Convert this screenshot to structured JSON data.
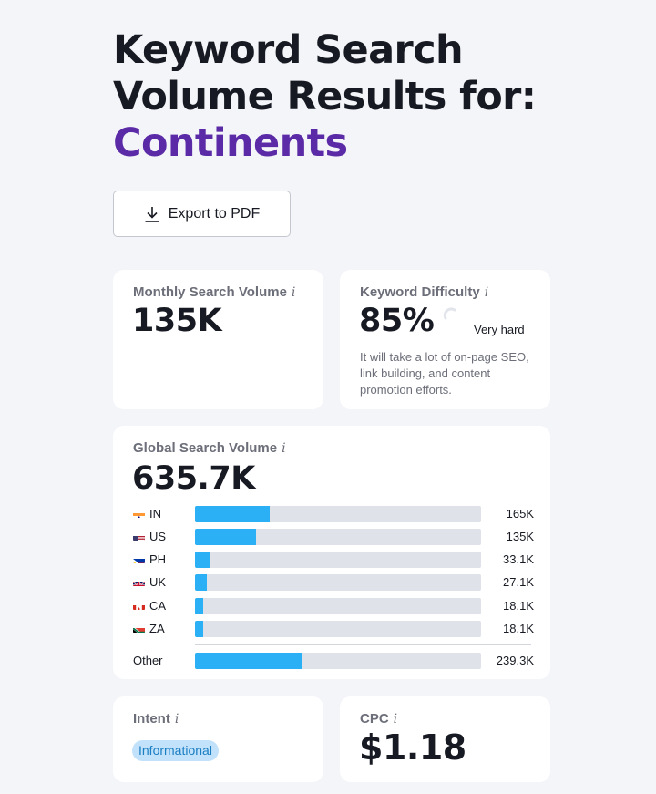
{
  "title": {
    "line1": "Keyword Search",
    "line2": "Volume Results for:",
    "keyword": "Continents"
  },
  "export_button": {
    "label": "Export to PDF",
    "icon": "download-icon"
  },
  "monthly_search_volume": {
    "label": "Monthly Search Volume",
    "value": "135K"
  },
  "keyword_difficulty": {
    "label": "Keyword Difficulty",
    "value": "85%",
    "percent": 85,
    "level": "Very hard",
    "description": "It will take a lot of on-page SEO, link building, and content promotion efforts."
  },
  "global_search_volume": {
    "label": "Global Search Volume",
    "value": "635.7K",
    "countries": [
      {
        "code": "IN",
        "value_label": "165K",
        "value": 165000
      },
      {
        "code": "US",
        "value_label": "135K",
        "value": 135000
      },
      {
        "code": "PH",
        "value_label": "33.1K",
        "value": 33100
      },
      {
        "code": "UK",
        "value_label": "27.1K",
        "value": 27100
      },
      {
        "code": "CA",
        "value_label": "18.1K",
        "value": 18100
      },
      {
        "code": "ZA",
        "value_label": "18.1K",
        "value": 18100
      }
    ],
    "other": {
      "label": "Other",
      "value_label": "239.3K",
      "value": 239300
    },
    "bar_scale_max": 635700
  },
  "intent": {
    "label": "Intent",
    "badge": "Informational"
  },
  "cpc": {
    "label": "CPC",
    "value": "$1.18"
  },
  "colors": {
    "keyword": "#5b2aa6",
    "bar_fill": "#2bb0f5",
    "bar_track": "#e0e2ea",
    "intent_badge_bg": "#c2e2fb",
    "intent_badge_text": "#1a7ec2"
  }
}
